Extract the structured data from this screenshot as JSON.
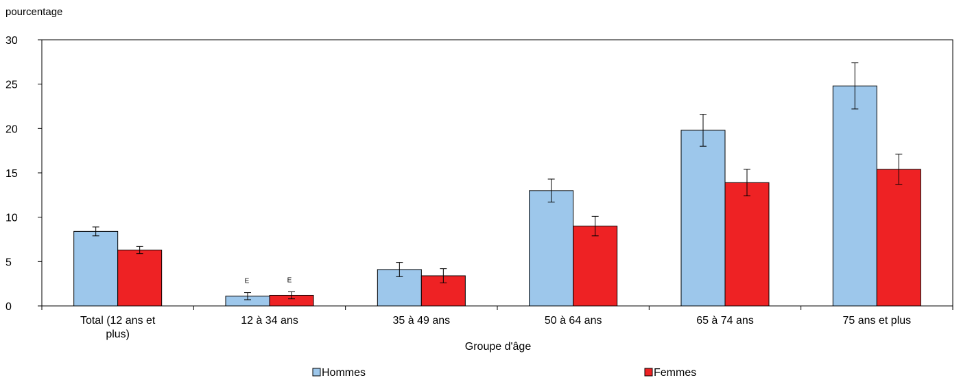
{
  "chart_data": {
    "type": "bar",
    "ylabel": "pourcentage",
    "xlabel": "Groupe d'âge",
    "ylim": [
      0,
      30
    ],
    "yticks": [
      0,
      5,
      10,
      15,
      20,
      25,
      30
    ],
    "grid": false,
    "legend_position": "bottom",
    "categories": [
      [
        "Total (12 ans et",
        "plus)"
      ],
      [
        "12 à 34 ans"
      ],
      [
        "35 à 49 ans"
      ],
      [
        "50 à 64 ans"
      ],
      [
        "65 à 74 ans"
      ],
      [
        "75 ans et plus"
      ]
    ],
    "series": [
      {
        "name": "Hommes",
        "color": "#9dc7eb",
        "values": [
          8.4,
          1.1,
          4.1,
          13.0,
          19.8,
          24.8
        ],
        "error_low": [
          7.9,
          0.7,
          3.3,
          11.7,
          18.0,
          22.2
        ],
        "error_high": [
          8.9,
          1.5,
          4.9,
          14.3,
          21.6,
          27.4
        ],
        "flags": [
          "",
          "E",
          "",
          "",
          "",
          ""
        ]
      },
      {
        "name": "Femmes",
        "color": "#ee2224",
        "values": [
          6.3,
          1.2,
          3.4,
          9.0,
          13.9,
          15.4
        ],
        "error_low": [
          5.9,
          0.8,
          2.6,
          7.9,
          12.4,
          13.7
        ],
        "error_high": [
          6.7,
          1.6,
          4.2,
          10.1,
          15.4,
          17.1
        ],
        "flags": [
          "",
          "E",
          "",
          "",
          "",
          ""
        ]
      }
    ]
  }
}
